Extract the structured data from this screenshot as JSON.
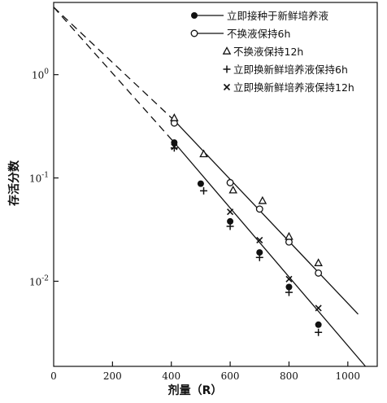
{
  "chart_data": {
    "type": "scatter",
    "xlabel": "剂量（R）",
    "ylabel": "存活分数",
    "x_scale": "linear",
    "y_scale": "log",
    "xlim": [
      0,
      1100
    ],
    "ylim": [
      0.0015,
      5
    ],
    "x_ticks": [
      {
        "value": 0,
        "label": "0"
      },
      {
        "value": 200,
        "label": "200"
      },
      {
        "value": 400,
        "label": "400"
      },
      {
        "value": 600,
        "label": "600"
      },
      {
        "value": 800,
        "label": "800"
      },
      {
        "value": 1000,
        "label": "1000"
      }
    ],
    "y_ticks": [
      {
        "value": 1,
        "base": "10",
        "exp": "0"
      },
      {
        "value": 0.1,
        "base": "10",
        "exp": "-1"
      },
      {
        "value": 0.01,
        "base": "10",
        "exp": "-2"
      }
    ],
    "legend_position": "top-right",
    "series": [
      {
        "name": "立即接种于新鲜培养液",
        "marker": "filled-circle",
        "points": [
          [
            410,
            0.22
          ],
          [
            500,
            0.088
          ],
          [
            600,
            0.038
          ],
          [
            700,
            0.019
          ],
          [
            800,
            0.0088
          ],
          [
            900,
            0.0038
          ]
        ]
      },
      {
        "name": "不换液保持6h",
        "marker": "open-circle",
        "points": [
          [
            410,
            0.34
          ],
          [
            600,
            0.09
          ],
          [
            700,
            0.05
          ],
          [
            800,
            0.024
          ],
          [
            900,
            0.012
          ]
        ]
      },
      {
        "name": "不换液保持12h",
        "marker": "triangle",
        "points": [
          [
            410,
            0.38
          ],
          [
            510,
            0.17
          ],
          [
            610,
            0.076
          ],
          [
            710,
            0.06
          ],
          [
            800,
            0.027
          ],
          [
            900,
            0.015
          ]
        ]
      },
      {
        "name": "立即换新鲜培养液保持6h",
        "marker": "plus",
        "points": [
          [
            410,
            0.195
          ],
          [
            510,
            0.075
          ],
          [
            600,
            0.034
          ],
          [
            700,
            0.017
          ],
          [
            800,
            0.0078
          ],
          [
            900,
            0.0032
          ]
        ]
      },
      {
        "name": "立即换新鲜培养液保持12h",
        "marker": "cross",
        "points": [
          [
            410,
            0.2
          ],
          [
            600,
            0.047
          ],
          [
            700,
            0.025
          ],
          [
            800,
            0.0105
          ],
          [
            900,
            0.0055
          ]
        ]
      }
    ],
    "fit_lines": [
      {
        "dashed": [
          [
            0,
            4.5
          ],
          [
            410,
            0.22
          ]
        ],
        "solid": [
          [
            410,
            0.22
          ],
          [
            1060,
            0.0015
          ]
        ]
      },
      {
        "dashed": [
          [
            0,
            4.5
          ],
          [
            410,
            0.36
          ]
        ],
        "solid": [
          [
            410,
            0.36
          ],
          [
            1035,
            0.0048
          ]
        ]
      }
    ]
  }
}
